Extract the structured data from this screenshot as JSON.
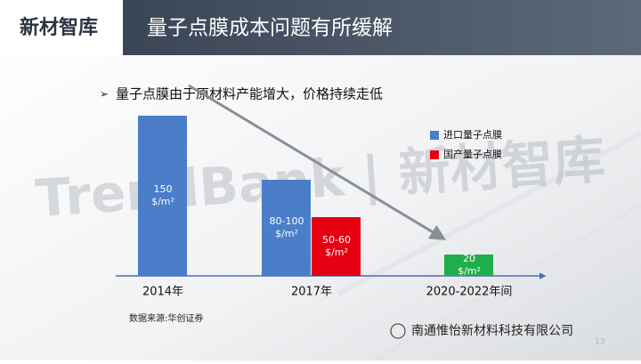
{
  "header": {
    "logo": "新材智库",
    "title": "量子点膜成本问题有所缓解"
  },
  "bullet": "量子点膜由于原材料产能增大，价格持续走低",
  "watermark": "TrendBank | 新材智库",
  "chart_data": {
    "type": "bar",
    "categories": [
      "2014年",
      "2017年",
      "2020-2022年间"
    ],
    "unit": "$/m²",
    "series": [
      {
        "name": "进口量子点膜",
        "color": "#4a7ec8",
        "colors": [
          "#4a7ec8",
          "#4a7ec8",
          "#1fae4b"
        ],
        "values": [
          150,
          90,
          20
        ],
        "value_labels": [
          "150",
          "80-100",
          "20"
        ]
      },
      {
        "name": "国产量子点膜",
        "color": "#e60012",
        "values": [
          null,
          55,
          null
        ],
        "value_labels": [
          null,
          "50-60",
          null
        ]
      }
    ]
  },
  "source": "数据来源:华创证券",
  "footer": "南通惟怡新材料科技有限公司",
  "page_number": "13"
}
